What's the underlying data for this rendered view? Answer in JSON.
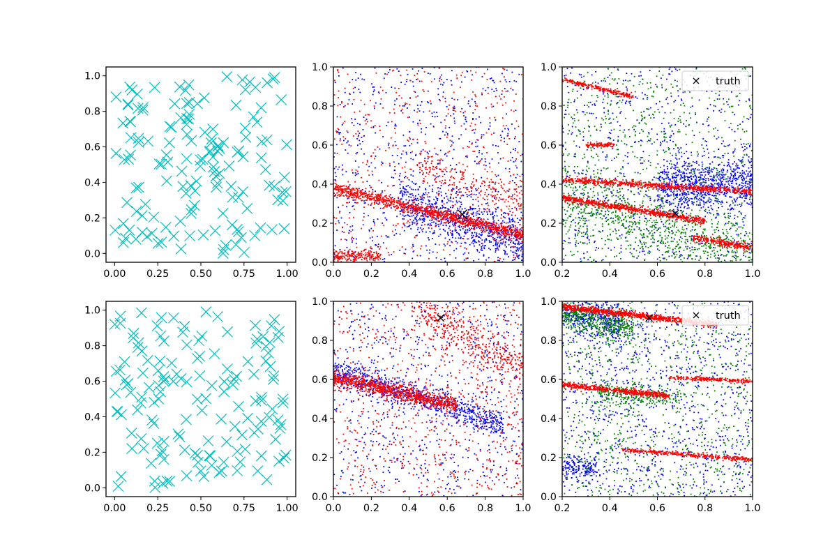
{
  "colors": {
    "cyan": "#00bfbf",
    "blue": "#0000ff",
    "red": "#ff0000",
    "green": "#008000",
    "black": "#000000"
  },
  "chart_data": [
    {
      "id": "r0c0",
      "type": "scatter",
      "xlim": [
        -0.05,
        1.05
      ],
      "ylim": [
        -0.05,
        1.05
      ],
      "xticks": [
        "0.00",
        "0.25",
        "0.50",
        "0.75",
        "1.00"
      ],
      "yticks": [
        "0.0",
        "0.2",
        "0.4",
        "0.6",
        "0.8",
        "1.0"
      ],
      "series": [
        {
          "name": "samples",
          "marker": "x",
          "color": "cyan",
          "seed": 11,
          "count": 150,
          "components": [
            {
              "kind": "uniform",
              "weight": 1
            }
          ]
        }
      ]
    },
    {
      "id": "r0c1",
      "type": "scatter",
      "xlim": [
        0,
        1
      ],
      "ylim": [
        0,
        1
      ],
      "xticks": [
        "0.0",
        "0.2",
        "0.4",
        "0.6",
        "0.8",
        "1.0"
      ],
      "yticks": [
        "0.0",
        "0.2",
        "0.4",
        "0.6",
        "0.8",
        "1.0"
      ],
      "truth": {
        "x": 0.68,
        "y": 0.245,
        "size": "large"
      },
      "series": [
        {
          "name": "blue",
          "marker": "dot",
          "color": "blue",
          "seed": 21,
          "count": 1500,
          "components": [
            {
              "kind": "band",
              "weight": 0.55,
              "x0": 0.35,
              "x1": 1.0,
              "yAt0": 0.43,
              "slope": -0.32,
              "spread": 0.07
            },
            {
              "kind": "uniform",
              "weight": 0.45
            }
          ]
        },
        {
          "name": "red",
          "marker": "dot",
          "color": "red",
          "seed": 22,
          "count": 2000,
          "components": [
            {
              "kind": "band",
              "weight": 0.55,
              "x0": 0.0,
              "x1": 1.0,
              "yAt0": 0.38,
              "slope": -0.24,
              "spread": 0.015
            },
            {
              "kind": "band",
              "weight": 0.1,
              "x0": 0.0,
              "x1": 0.25,
              "yAt0": 0.03,
              "slope": 0.0,
              "spread": 0.015
            },
            {
              "kind": "band",
              "weight": 0.1,
              "x0": 0.45,
              "x1": 1.0,
              "yAt0": 0.64,
              "slope": -0.32,
              "spread": 0.04
            },
            {
              "kind": "uniform",
              "weight": 0.25
            }
          ]
        }
      ]
    },
    {
      "id": "r0c2",
      "type": "scatter",
      "xlim": [
        0.2,
        1
      ],
      "ylim": [
        0,
        1
      ],
      "xticks": [
        "0.2",
        "0.4",
        "0.6",
        "0.8",
        "1.0"
      ],
      "yticks": [
        "0.0",
        "0.2",
        "0.4",
        "0.6",
        "0.8",
        "1.0"
      ],
      "truth": {
        "x": 0.675,
        "y": 0.25,
        "size": "small"
      },
      "legend": {
        "label": "truth",
        "loc": "upper right"
      },
      "series": [
        {
          "name": "blue",
          "marker": "dot",
          "color": "blue",
          "seed": 31,
          "count": 1500,
          "components": [
            {
              "kind": "band",
              "weight": 0.55,
              "x0": 0.6,
              "x1": 1.0,
              "yAt0": 0.32,
              "slope": 0.1,
              "spread": 0.07
            },
            {
              "kind": "uniform",
              "weight": 0.45
            }
          ]
        },
        {
          "name": "green",
          "marker": "dot",
          "color": "green",
          "seed": 32,
          "count": 1500,
          "components": [
            {
              "kind": "band",
              "weight": 0.5,
              "x0": 0.2,
              "x1": 1.0,
              "yAt0": 0.38,
              "slope": -0.35,
              "spread": 0.08
            },
            {
              "kind": "uniform",
              "weight": 0.5
            }
          ]
        },
        {
          "name": "red",
          "marker": "dot",
          "color": "red",
          "seed": 33,
          "count": 2000,
          "components": [
            {
              "kind": "band",
              "weight": 0.35,
              "x0": 0.2,
              "x1": 1.0,
              "yAt0": 0.44,
              "slope": -0.08,
              "spread": 0.008
            },
            {
              "kind": "band",
              "weight": 0.35,
              "x0": 0.2,
              "x1": 0.8,
              "yAt0": 0.37,
              "slope": -0.2,
              "spread": 0.008
            },
            {
              "kind": "band",
              "weight": 0.12,
              "x0": 0.2,
              "x1": 0.5,
              "yAt0": 0.99,
              "slope": -0.28,
              "spread": 0.006
            },
            {
              "kind": "band",
              "weight": 0.05,
              "x0": 0.3,
              "x1": 0.42,
              "yAt0": 0.6,
              "slope": 0.0,
              "spread": 0.006
            },
            {
              "kind": "band",
              "weight": 0.13,
              "x0": 0.75,
              "x1": 1.0,
              "yAt0": 0.275,
              "slope": -0.2,
              "spread": 0.01
            }
          ]
        }
      ]
    },
    {
      "id": "r1c0",
      "type": "scatter",
      "xlim": [
        -0.05,
        1.05
      ],
      "ylim": [
        -0.05,
        1.05
      ],
      "xticks": [
        "0.00",
        "0.25",
        "0.50",
        "0.75",
        "1.00"
      ],
      "yticks": [
        "0.0",
        "0.2",
        "0.4",
        "0.6",
        "0.8",
        "1.0"
      ],
      "series": [
        {
          "name": "samples",
          "marker": "x",
          "color": "cyan",
          "seed": 41,
          "count": 150,
          "components": [
            {
              "kind": "uniform",
              "weight": 1
            }
          ]
        }
      ]
    },
    {
      "id": "r1c1",
      "type": "scatter",
      "xlim": [
        0,
        1
      ],
      "ylim": [
        0,
        1
      ],
      "xticks": [
        "0.0",
        "0.2",
        "0.4",
        "0.6",
        "0.8",
        "1.0"
      ],
      "yticks": [
        "0.0",
        "0.2",
        "0.4",
        "0.6",
        "0.8",
        "1.0"
      ],
      "truth": {
        "x": 0.565,
        "y": 0.915,
        "size": "small"
      },
      "series": [
        {
          "name": "blue",
          "marker": "dot",
          "color": "blue",
          "seed": 51,
          "count": 1500,
          "components": [
            {
              "kind": "band",
              "weight": 0.55,
              "x0": 0.0,
              "x1": 0.9,
              "yAt0": 0.64,
              "slope": -0.3,
              "spread": 0.035
            },
            {
              "kind": "uniform",
              "weight": 0.45
            }
          ]
        },
        {
          "name": "red",
          "marker": "dot",
          "color": "red",
          "seed": 52,
          "count": 2000,
          "components": [
            {
              "kind": "band",
              "weight": 0.45,
              "x0": 0.0,
              "x1": 0.65,
              "yAt0": 0.61,
              "slope": -0.22,
              "spread": 0.02
            },
            {
              "kind": "band",
              "weight": 0.2,
              "x0": 0.45,
              "x1": 1.0,
              "yAt0": 1.2,
              "slope": -0.55,
              "spread": 0.06
            },
            {
              "kind": "uniform",
              "weight": 0.35
            }
          ]
        }
      ]
    },
    {
      "id": "r1c2",
      "type": "scatter",
      "xlim": [
        0.2,
        1
      ],
      "ylim": [
        0,
        1
      ],
      "xticks": [
        "0.2",
        "0.4",
        "0.6",
        "0.8",
        "1.0"
      ],
      "yticks": [
        "0.0",
        "0.2",
        "0.4",
        "0.6",
        "0.8",
        "1.0"
      ],
      "truth": {
        "x": 0.565,
        "y": 0.915,
        "size": "small"
      },
      "legend": {
        "label": "truth",
        "loc": "upper right"
      },
      "series": [
        {
          "name": "blue",
          "marker": "dot",
          "color": "blue",
          "seed": 61,
          "count": 1500,
          "components": [
            {
              "kind": "band",
              "weight": 0.25,
              "x0": 0.2,
              "x1": 0.45,
              "yAt0": 1.0,
              "slope": -0.25,
              "spread": 0.05
            },
            {
              "kind": "band",
              "weight": 0.1,
              "x0": 0.2,
              "x1": 0.35,
              "yAt0": 0.15,
              "slope": 0.0,
              "spread": 0.03
            },
            {
              "kind": "uniform",
              "weight": 0.65
            }
          ]
        },
        {
          "name": "green",
          "marker": "dot",
          "color": "green",
          "seed": 62,
          "count": 1500,
          "components": [
            {
              "kind": "band",
              "weight": 0.3,
              "x0": 0.2,
              "x1": 0.5,
              "yAt0": 1.0,
              "slope": -0.3,
              "spread": 0.04
            },
            {
              "kind": "band",
              "weight": 0.15,
              "x0": 0.35,
              "x1": 0.7,
              "yAt0": 0.57,
              "slope": -0.1,
              "spread": 0.03
            },
            {
              "kind": "uniform",
              "weight": 0.55
            }
          ]
        },
        {
          "name": "red",
          "marker": "dot",
          "color": "red",
          "seed": 63,
          "count": 2000,
          "components": [
            {
              "kind": "band",
              "weight": 0.45,
              "x0": 0.2,
              "x1": 0.85,
              "yAt0": 1.0,
              "slope": -0.14,
              "spread": 0.008
            },
            {
              "kind": "band",
              "weight": 0.25,
              "x0": 0.2,
              "x1": 0.65,
              "yAt0": 0.6,
              "slope": -0.13,
              "spread": 0.008
            },
            {
              "kind": "band",
              "weight": 0.12,
              "x0": 0.65,
              "x1": 1.0,
              "yAt0": 0.65,
              "slope": -0.06,
              "spread": 0.005
            },
            {
              "kind": "band",
              "weight": 0.18,
              "x0": 0.45,
              "x1": 1.0,
              "yAt0": 0.28,
              "slope": -0.09,
              "spread": 0.006
            }
          ]
        }
      ]
    }
  ]
}
